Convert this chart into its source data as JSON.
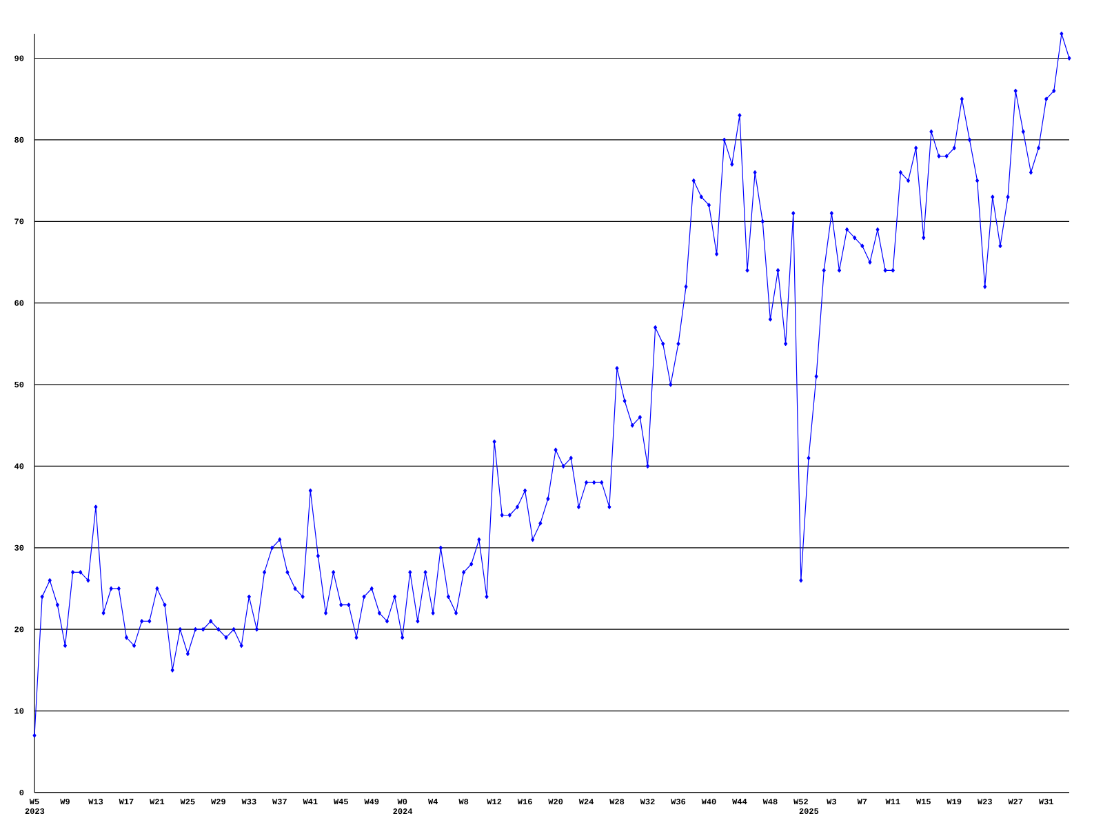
{
  "chart_data": {
    "type": "line",
    "categories": [
      "W5 2023",
      null,
      null,
      null,
      "W9",
      null,
      null,
      null,
      "W13",
      null,
      null,
      null,
      "W17",
      null,
      null,
      null,
      "W21",
      null,
      null,
      null,
      "W25",
      null,
      null,
      null,
      "W29",
      null,
      null,
      null,
      "W33",
      null,
      null,
      null,
      "W37",
      null,
      null,
      null,
      "W41",
      null,
      null,
      null,
      "W45",
      null,
      null,
      null,
      "W49",
      null,
      null,
      null,
      "W0 2024",
      null,
      null,
      null,
      "W4",
      null,
      null,
      null,
      "W8",
      null,
      null,
      null,
      "W12",
      null,
      null,
      null,
      "W16",
      null,
      null,
      null,
      "W20",
      null,
      null,
      null,
      "W24",
      null,
      null,
      null,
      "W28",
      null,
      null,
      null,
      "W32",
      null,
      null,
      null,
      "W36",
      null,
      null,
      null,
      "W40",
      null,
      null,
      null,
      "W44",
      null,
      null,
      null,
      "W48",
      null,
      null,
      null,
      "W52",
      "2025",
      null,
      null,
      "W3",
      null,
      null,
      null,
      "W7",
      null,
      null,
      null,
      "W11",
      null,
      null,
      null,
      "W15",
      null,
      null,
      null,
      "W19",
      null,
      null,
      null,
      "W23",
      null,
      null,
      null,
      "W27",
      null,
      null,
      null,
      "W31",
      null,
      null,
      null
    ],
    "values": [
      7,
      24,
      26,
      23,
      18,
      27,
      27,
      26,
      35,
      22,
      25,
      25,
      19,
      18,
      21,
      21,
      25,
      23,
      15,
      20,
      17,
      20,
      20,
      21,
      20,
      19,
      20,
      18,
      24,
      20,
      27,
      30,
      31,
      27,
      25,
      24,
      37,
      29,
      22,
      27,
      23,
      23,
      19,
      24,
      25,
      22,
      21,
      24,
      19,
      27,
      21,
      27,
      22,
      30,
      24,
      22,
      27,
      28,
      31,
      24,
      43,
      34,
      34,
      35,
      37,
      31,
      33,
      36,
      42,
      40,
      41,
      35,
      38,
      38,
      38,
      35,
      52,
      48,
      45,
      46,
      40,
      57,
      55,
      50,
      55,
      62,
      75,
      73,
      72,
      66,
      80,
      77,
      83,
      64,
      76,
      70,
      58,
      64,
      55,
      71,
      26,
      41,
      51,
      64,
      71,
      64,
      69,
      68,
      67,
      65,
      69,
      64,
      64,
      76,
      75,
      79,
      68,
      81,
      78,
      78,
      79,
      85,
      80,
      75,
      62,
      73,
      67,
      73,
      86,
      81,
      76,
      79,
      85,
      86,
      93,
      90
    ],
    "color": "#0000ff",
    "ylim": [
      0,
      93
    ],
    "yticks": [
      0,
      10,
      20,
      30,
      40,
      50,
      60,
      70,
      80,
      90
    ],
    "grid": "y",
    "marker": "diamond",
    "line_style": "solid"
  }
}
